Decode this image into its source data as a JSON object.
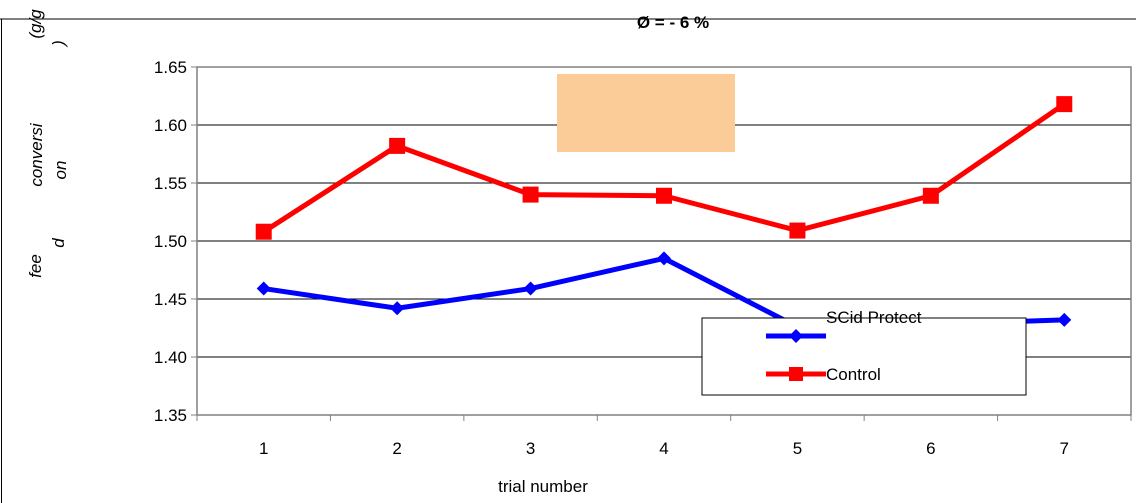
{
  "chart_data": {
    "type": "line",
    "title": "Ø = - 6 %",
    "xlabel": "trial number",
    "ylabel_parts": [
      "fee",
      "d",
      "conversi",
      "on",
      "(g/g",
      ")"
    ],
    "categories": [
      "1",
      "2",
      "3",
      "4",
      "5",
      "6",
      "7"
    ],
    "y_ticks": [
      "1.35",
      "1.40",
      "1.45",
      "1.50",
      "1.55",
      "1.60",
      "1.65"
    ],
    "ylim": [
      1.35,
      1.65
    ],
    "grid": true,
    "legend_position": "bottom-right",
    "series": [
      {
        "name": "SCid Protect",
        "color": "#0000ff",
        "marker": "diamond",
        "values": [
          1.459,
          1.442,
          1.459,
          1.485,
          1.426,
          1.428,
          1.432
        ]
      },
      {
        "name": "Control",
        "color": "#ff0000",
        "marker": "square",
        "values": [
          1.508,
          1.582,
          1.54,
          1.539,
          1.509,
          1.539,
          1.618
        ]
      }
    ],
    "annotation_box_color": "#fbcb98"
  }
}
